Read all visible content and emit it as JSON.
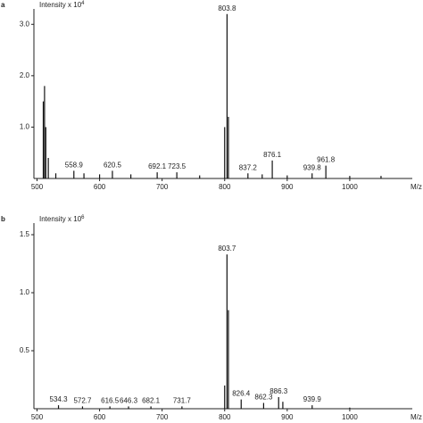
{
  "chart_data": [
    {
      "type": "spectrum",
      "panel": "a",
      "ylabel": "Intensity x 10",
      "ylabel_exponent": "4",
      "xlabel": "M/z",
      "color": "#111111",
      "x": [
        510,
        512,
        514,
        518,
        530,
        558.9,
        575,
        600,
        620.5,
        650,
        692.1,
        723.5,
        760,
        800,
        803.8,
        806,
        837.2,
        860,
        876.1,
        900,
        939.8,
        961.8,
        1000,
        1050
      ],
      "values": [
        1.5,
        1.8,
        1.0,
        0.4,
        0.1,
        0.15,
        0.1,
        0.08,
        0.15,
        0.08,
        0.12,
        0.12,
        0.06,
        1.0,
        3.2,
        1.2,
        0.1,
        0.08,
        0.35,
        0.06,
        0.1,
        0.25,
        0.05,
        0.05
      ],
      "x_labels": [
        null,
        null,
        null,
        null,
        null,
        "558.9",
        null,
        null,
        "620.5",
        null,
        "692.1",
        "723.5",
        null,
        null,
        "803.8",
        null,
        "837.2",
        null,
        "876.1",
        null,
        "939.8",
        "961.8",
        null,
        null
      ],
      "xlim": [
        495,
        1100
      ],
      "xticks": [
        500,
        600,
        700,
        800,
        900,
        1000
      ],
      "ylim": [
        0,
        3.3
      ],
      "yticks": [
        {
          "value": 1,
          "label": "1.0"
        },
        {
          "value": 2,
          "label": "2.0"
        },
        {
          "value": 3,
          "label": "3.0"
        }
      ]
    },
    {
      "type": "spectrum",
      "panel": "b",
      "ylabel": "Intensity x 10",
      "ylabel_exponent": "6",
      "xlabel": "M/z",
      "color": "#111111",
      "x": [
        534.3,
        572.7,
        616.5,
        646.3,
        682.1,
        731.7,
        800,
        803.7,
        806,
        826.4,
        862.3,
        886.3,
        893,
        939.9,
        1000
      ],
      "values": [
        0.03,
        0.02,
        0.02,
        0.02,
        0.02,
        0.02,
        0.2,
        1.33,
        0.85,
        0.08,
        0.05,
        0.1,
        0.06,
        0.03,
        0.01
      ],
      "x_labels": [
        "534.3",
        "572.7",
        "616.5",
        "646.3",
        "682.1",
        "731.7",
        null,
        "803.7",
        null,
        "826.4",
        "862.3",
        "886.3",
        null,
        "939.9",
        null
      ],
      "xlim": [
        495,
        1100
      ],
      "xticks": [
        500,
        600,
        700,
        800,
        900,
        1000
      ],
      "ylim": [
        0,
        1.6
      ],
      "yticks": [
        {
          "value": 0.5,
          "label": "0.5"
        },
        {
          "value": 1,
          "label": "1.0"
        },
        {
          "value": 1.5,
          "label": "1.5"
        }
      ]
    }
  ]
}
